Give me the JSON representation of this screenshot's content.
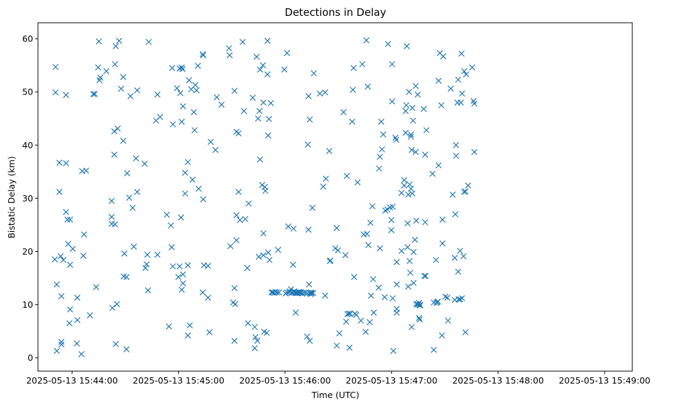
{
  "chart_data": {
    "type": "scatter",
    "title": "Detections in Delay",
    "xlabel": "Time (UTC)",
    "ylabel": "Bistatic Delay (km)",
    "x_unit": "seconds past 2025-05-13 15:44:00 UTC",
    "xlim": [
      -19.2,
      315.6
    ],
    "ylim": [
      -2.5,
      63
    ],
    "x_ticks": [
      {
        "value": 0,
        "label": "2025-05-13 15:44:00"
      },
      {
        "value": 60,
        "label": "2025-05-13 15:45:00"
      },
      {
        "value": 120,
        "label": "2025-05-13 15:46:00"
      },
      {
        "value": 180,
        "label": "2025-05-13 15:47:00"
      },
      {
        "value": 240,
        "label": "2025-05-13 15:48:00"
      },
      {
        "value": 300,
        "label": "2025-05-13 15:49:00"
      }
    ],
    "y_ticks": [
      {
        "value": 0,
        "label": "0"
      },
      {
        "value": 10,
        "label": "10"
      },
      {
        "value": 20,
        "label": "20"
      },
      {
        "value": 30,
        "label": "30"
      },
      {
        "value": 40,
        "label": "40"
      },
      {
        "value": 50,
        "label": "50"
      },
      {
        "value": 60,
        "label": "60"
      }
    ],
    "marker": "x",
    "color": "#1f77b4",
    "grid": false,
    "points": [
      [
        -9.3,
        54.7
      ],
      [
        -9.3,
        49.9
      ],
      [
        -9.7,
        18.5
      ],
      [
        -8.6,
        13.8
      ],
      [
        -8.6,
        1.3
      ],
      [
        -7.1,
        36.7
      ],
      [
        -7.1,
        31.2
      ],
      [
        -6.0,
        11.6
      ],
      [
        -6.4,
        19.1
      ],
      [
        -6.0,
        3.0
      ],
      [
        -6.0,
        2.5
      ],
      [
        -4.9,
        18.4
      ],
      [
        -3.4,
        27.4
      ],
      [
        -3.4,
        49.4
      ],
      [
        -3.4,
        36.6
      ],
      [
        -2.6,
        26.0
      ],
      [
        -2.2,
        21.4
      ],
      [
        -1.1,
        26.0
      ],
      [
        -1.1,
        17.5
      ],
      [
        -1.5,
        6.5
      ],
      [
        -1.1,
        9.1
      ],
      [
        0.4,
        20.5
      ],
      [
        2.7,
        2.7
      ],
      [
        3.0,
        7.1
      ],
      [
        3.0,
        11.3
      ],
      [
        5.3,
        0.7
      ],
      [
        5.7,
        35.1
      ],
      [
        6.4,
        19.2
      ],
      [
        6.8,
        23.2
      ],
      [
        7.9,
        35.2
      ],
      [
        10.1,
        8.0
      ],
      [
        12.0,
        49.6
      ],
      [
        12.8,
        49.6
      ],
      [
        13.6,
        13.3
      ],
      [
        14.7,
        54.6
      ],
      [
        15.1,
        59.5
      ],
      [
        15.5,
        52.2
      ],
      [
        15.9,
        52.7
      ],
      [
        19.3,
        53.9
      ],
      [
        22.3,
        26.5
      ],
      [
        22.3,
        29.5
      ],
      [
        22.3,
        25.2
      ],
      [
        22.7,
        9.4
      ],
      [
        23.8,
        42.6
      ],
      [
        23.8,
        38.2
      ],
      [
        24.2,
        25.1
      ],
      [
        24.2,
        55.2
      ],
      [
        24.6,
        58.6
      ],
      [
        24.6,
        2.6
      ],
      [
        25.3,
        10.1
      ],
      [
        25.7,
        43.1
      ],
      [
        26.5,
        59.6
      ],
      [
        27.6,
        50.6
      ],
      [
        28.8,
        40.8
      ],
      [
        28.8,
        52.8
      ],
      [
        29.1,
        15.3
      ],
      [
        29.5,
        19.6
      ],
      [
        30.7,
        15.2
      ],
      [
        30.7,
        1.6
      ],
      [
        31.0,
        34.7
      ],
      [
        32.2,
        30.1
      ],
      [
        32.9,
        49.2
      ],
      [
        34.1,
        28.2
      ],
      [
        34.8,
        20.9
      ],
      [
        36.0,
        37.5
      ],
      [
        36.7,
        50.3
      ],
      [
        36.7,
        31.2
      ],
      [
        40.9,
        36.5
      ],
      [
        41.3,
        16.9
      ],
      [
        42.0,
        17.6
      ],
      [
        42.4,
        19.4
      ],
      [
        42.8,
        12.7
      ],
      [
        43.2,
        59.4
      ],
      [
        47.3,
        44.6
      ],
      [
        48.1,
        49.5
      ],
      [
        48.1,
        19.4
      ],
      [
        49.6,
        45.3
      ],
      [
        53.4,
        26.9
      ],
      [
        54.6,
        5.9
      ],
      [
        55.7,
        24.9
      ],
      [
        56.1,
        20.8
      ],
      [
        56.4,
        54.5
      ],
      [
        56.8,
        17.2
      ],
      [
        56.8,
        43.9
      ],
      [
        59.1,
        50.7
      ],
      [
        59.9,
        15.2
      ],
      [
        60.6,
        54.4
      ],
      [
        60.6,
        17.2
      ],
      [
        61.0,
        49.8
      ],
      [
        61.4,
        26.4
      ],
      [
        61.8,
        54.6
      ],
      [
        61.8,
        44.4
      ],
      [
        61.8,
        12.8
      ],
      [
        62.2,
        54.3
      ],
      [
        62.5,
        15.7
      ],
      [
        62.5,
        47.3
      ],
      [
        62.5,
        14.0
      ],
      [
        63.7,
        34.8
      ],
      [
        63.7,
        30.9
      ],
      [
        65.2,
        36.8
      ],
      [
        65.2,
        17.4
      ],
      [
        65.2,
        4.2
      ],
      [
        65.9,
        52.2
      ],
      [
        66.3,
        6.1
      ],
      [
        67.1,
        50.5
      ],
      [
        67.8,
        33.5
      ],
      [
        68.6,
        46.2
      ],
      [
        69.0,
        42.8
      ],
      [
        69.4,
        51.3
      ],
      [
        70.1,
        50.3
      ],
      [
        70.9,
        54.9
      ],
      [
        71.3,
        31.8
      ],
      [
        73.6,
        57.1
      ],
      [
        73.6,
        12.3
      ],
      [
        73.9,
        56.9
      ],
      [
        73.9,
        29.8
      ],
      [
        74.3,
        17.4
      ],
      [
        76.6,
        11.3
      ],
      [
        76.6,
        17.3
      ],
      [
        77.4,
        4.8
      ],
      [
        78.1,
        40.6
      ],
      [
        80.8,
        39.1
      ],
      [
        81.5,
        49.0
      ],
      [
        84.2,
        47.6
      ],
      [
        88.4,
        58.2
      ],
      [
        88.8,
        56.9
      ],
      [
        89.2,
        21.0
      ],
      [
        90.7,
        10.4
      ],
      [
        91.5,
        13.1
      ],
      [
        91.5,
        3.2
      ],
      [
        91.5,
        50.2
      ],
      [
        91.9,
        10.1
      ],
      [
        92.6,
        26.8
      ],
      [
        92.6,
        42.5
      ],
      [
        92.6,
        22.1
      ],
      [
        93.8,
        31.2
      ],
      [
        93.8,
        42.2
      ],
      [
        94.6,
        25.9
      ],
      [
        96.1,
        59.4
      ],
      [
        96.8,
        46.4
      ],
      [
        97.6,
        26.1
      ],
      [
        98.7,
        16.9
      ],
      [
        99.1,
        6.5
      ],
      [
        99.5,
        29.0
      ],
      [
        101.8,
        48.9
      ],
      [
        102.9,
        5.8
      ],
      [
        102.9,
        1.8
      ],
      [
        103.3,
        3.9
      ],
      [
        104.0,
        56.6
      ],
      [
        104.4,
        3.2
      ],
      [
        104.8,
        45.0
      ],
      [
        105.2,
        19.0
      ],
      [
        105.6,
        46.4
      ],
      [
        105.9,
        37.3
      ],
      [
        105.9,
        54.2
      ],
      [
        107.1,
        32.5
      ],
      [
        107.5,
        55.0
      ],
      [
        107.8,
        48.0
      ],
      [
        107.8,
        23.4
      ],
      [
        107.8,
        19.3
      ],
      [
        108.2,
        4.9
      ],
      [
        108.6,
        32.1
      ],
      [
        108.9,
        31.4
      ],
      [
        109.7,
        4.7
      ],
      [
        110.1,
        59.6
      ],
      [
        110.1,
        53.3
      ],
      [
        110.5,
        41.8
      ],
      [
        110.5,
        19.8
      ],
      [
        110.9,
        44.9
      ],
      [
        111.2,
        18.4
      ],
      [
        112.0,
        47.9
      ],
      [
        112.4,
        12.3
      ],
      [
        113.1,
        12.3
      ],
      [
        113.9,
        12.2
      ],
      [
        114.6,
        12.4
      ],
      [
        115.4,
        12.3
      ],
      [
        116.1,
        20.3
      ],
      [
        116.5,
        12.3
      ],
      [
        119.6,
        54.2
      ],
      [
        120.3,
        12.1
      ],
      [
        121.1,
        57.3
      ],
      [
        121.1,
        12.3
      ],
      [
        121.8,
        24.7
      ],
      [
        122.2,
        12.3
      ],
      [
        122.6,
        12.5
      ],
      [
        123.3,
        12.9
      ],
      [
        123.7,
        12.2
      ],
      [
        124.1,
        12.3
      ],
      [
        124.5,
        17.5
      ],
      [
        124.8,
        12.4
      ],
      [
        124.8,
        24.3
      ],
      [
        125.2,
        12.5
      ],
      [
        125.6,
        12.2
      ],
      [
        126.0,
        8.5
      ],
      [
        126.3,
        12.3
      ],
      [
        126.7,
        12.2
      ],
      [
        127.1,
        12.3
      ],
      [
        127.5,
        12.2
      ],
      [
        127.9,
        12.4
      ],
      [
        128.2,
        12.3
      ],
      [
        128.6,
        12.2
      ],
      [
        129.0,
        12.3
      ],
      [
        129.8,
        12.1
      ],
      [
        130.5,
        12.3
      ],
      [
        131.6,
        12.3
      ],
      [
        132.4,
        4.0
      ],
      [
        132.4,
        12.1
      ],
      [
        132.8,
        40.1
      ],
      [
        133.2,
        24.1
      ],
      [
        133.2,
        49.2
      ],
      [
        133.5,
        13.8
      ],
      [
        133.9,
        12.2
      ],
      [
        133.9,
        44.8
      ],
      [
        133.9,
        3.2
      ],
      [
        134.3,
        12.0
      ],
      [
        134.7,
        12.3
      ],
      [
        135.0,
        12.1
      ],
      [
        135.4,
        28.2
      ],
      [
        135.8,
        12.2
      ],
      [
        136.2,
        53.5
      ],
      [
        139.6,
        49.7
      ],
      [
        141.5,
        32.2
      ],
      [
        142.6,
        49.9
      ],
      [
        142.6,
        11.7
      ],
      [
        143.0,
        33.7
      ],
      [
        144.9,
        38.9
      ],
      [
        145.2,
        18.2
      ],
      [
        145.6,
        18.3
      ],
      [
        148.3,
        20.6
      ],
      [
        149.1,
        24.4
      ],
      [
        149.1,
        2.3
      ],
      [
        149.8,
        20.2
      ],
      [
        150.6,
        4.6
      ],
      [
        152.9,
        46.2
      ],
      [
        154.0,
        19.3
      ],
      [
        154.4,
        6.8
      ],
      [
        154.8,
        34.2
      ],
      [
        155.1,
        8.2
      ],
      [
        155.9,
        8.3
      ],
      [
        156.3,
        1.9
      ],
      [
        156.7,
        8.3
      ],
      [
        157.8,
        44.4
      ],
      [
        158.2,
        50.4
      ],
      [
        158.6,
        54.5
      ],
      [
        158.9,
        15.2
      ],
      [
        159.3,
        8.3
      ],
      [
        160.1,
        8.1
      ],
      [
        160.8,
        33.0
      ],
      [
        162.7,
        7.0
      ],
      [
        163.5,
        55.2
      ],
      [
        164.3,
        23.2
      ],
      [
        165.4,
        4.9
      ],
      [
        165.8,
        59.7
      ],
      [
        166.2,
        23.3
      ],
      [
        166.6,
        51.0
      ],
      [
        166.9,
        21.2
      ],
      [
        167.7,
        6.7
      ],
      [
        168.1,
        25.4
      ],
      [
        168.4,
        11.7
      ],
      [
        169.2,
        28.5
      ],
      [
        169.6,
        14.8
      ],
      [
        170.0,
        8.5
      ],
      [
        172.7,
        13.2
      ],
      [
        173.0,
        35.6
      ],
      [
        173.4,
        37.8
      ],
      [
        173.4,
        20.6
      ],
      [
        174.2,
        44.4
      ],
      [
        174.6,
        39.2
      ],
      [
        175.3,
        42.0
      ],
      [
        176.1,
        11.4
      ],
      [
        176.5,
        27.7
      ],
      [
        177.6,
        27.9
      ],
      [
        178.0,
        59.0
      ],
      [
        179.1,
        28.3
      ],
      [
        179.9,
        24.0
      ],
      [
        179.9,
        25.9
      ],
      [
        180.3,
        48.2
      ],
      [
        180.3,
        55.2
      ],
      [
        180.6,
        11.2
      ],
      [
        180.6,
        28.4
      ],
      [
        181.0,
        1.3
      ],
      [
        182.2,
        41.4
      ],
      [
        182.6,
        41.0
      ],
      [
        182.9,
        18.0
      ],
      [
        182.9,
        8.5
      ],
      [
        182.9,
        9.2
      ],
      [
        182.9,
        13.8
      ],
      [
        185.6,
        20.1
      ],
      [
        185.6,
        31.0
      ],
      [
        187.1,
        32.4
      ],
      [
        187.1,
        33.4
      ],
      [
        187.9,
        42.3
      ],
      [
        187.9,
        46.4
      ],
      [
        188.3,
        47.5
      ],
      [
        188.6,
        58.6
      ],
      [
        189.0,
        20.8
      ],
      [
        189.0,
        25.3
      ],
      [
        189.4,
        30.7
      ],
      [
        189.4,
        13.4
      ],
      [
        189.8,
        50.0
      ],
      [
        190.2,
        18.2
      ],
      [
        190.2,
        32.6
      ],
      [
        190.5,
        16.0
      ],
      [
        190.9,
        31.8
      ],
      [
        190.9,
        42.0
      ],
      [
        190.9,
        41.6
      ],
      [
        191.3,
        5.8
      ],
      [
        191.3,
        39.1
      ],
      [
        191.7,
        47.0
      ],
      [
        191.7,
        30.9
      ],
      [
        192.1,
        44.6
      ],
      [
        192.4,
        19.9
      ],
      [
        192.4,
        14.1
      ],
      [
        193.2,
        22.2
      ],
      [
        193.6,
        51.1
      ],
      [
        193.6,
        38.7
      ],
      [
        193.9,
        25.8
      ],
      [
        193.9,
        10.1
      ],
      [
        194.7,
        49.5
      ],
      [
        194.7,
        10.1
      ],
      [
        195.1,
        10.0
      ],
      [
        195.5,
        10.3
      ],
      [
        195.5,
        7.5
      ],
      [
        195.8,
        7.2
      ],
      [
        195.8,
        9.9
      ],
      [
        196.2,
        9.9
      ],
      [
        198.1,
        46.8
      ],
      [
        198.5,
        15.4
      ],
      [
        198.9,
        25.5
      ],
      [
        198.9,
        38.2
      ],
      [
        199.2,
        15.4
      ],
      [
        199.6,
        42.8
      ],
      [
        203.1,
        34.6
      ],
      [
        203.8,
        1.5
      ],
      [
        203.8,
        10.4
      ],
      [
        205.0,
        18.4
      ],
      [
        205.3,
        10.3
      ],
      [
        205.7,
        10.5
      ],
      [
        206.1,
        10.6
      ],
      [
        206.5,
        36.2
      ],
      [
        206.5,
        52.1
      ],
      [
        207.2,
        57.3
      ],
      [
        208.0,
        47.5
      ],
      [
        208.4,
        4.2
      ],
      [
        208.7,
        21.5
      ],
      [
        208.7,
        26.0
      ],
      [
        209.1,
        56.7
      ],
      [
        210.3,
        11.5
      ],
      [
        211.4,
        11.3
      ],
      [
        211.8,
        7.0
      ],
      [
        213.3,
        50.6
      ],
      [
        214.4,
        30.7
      ],
      [
        215.6,
        18.8
      ],
      [
        215.6,
        10.9
      ],
      [
        215.9,
        27.0
      ],
      [
        216.3,
        38.0
      ],
      [
        216.3,
        40.0
      ],
      [
        217.1,
        48.0
      ],
      [
        217.5,
        16.2
      ],
      [
        217.5,
        52.3
      ],
      [
        217.8,
        11.0
      ],
      [
        218.6,
        11.0
      ],
      [
        218.6,
        20.1
      ],
      [
        219.0,
        48.0
      ],
      [
        219.4,
        57.2
      ],
      [
        219.7,
        49.7
      ],
      [
        219.7,
        11.2
      ],
      [
        220.5,
        19.1
      ],
      [
        220.9,
        31.2
      ],
      [
        220.9,
        53.9
      ],
      [
        221.6,
        31.3
      ],
      [
        221.6,
        4.8
      ],
      [
        222.0,
        53.3
      ],
      [
        223.1,
        32.4
      ],
      [
        225.4,
        54.6
      ],
      [
        226.2,
        48.3
      ],
      [
        226.6,
        47.8
      ],
      [
        226.6,
        38.7
      ]
    ]
  }
}
